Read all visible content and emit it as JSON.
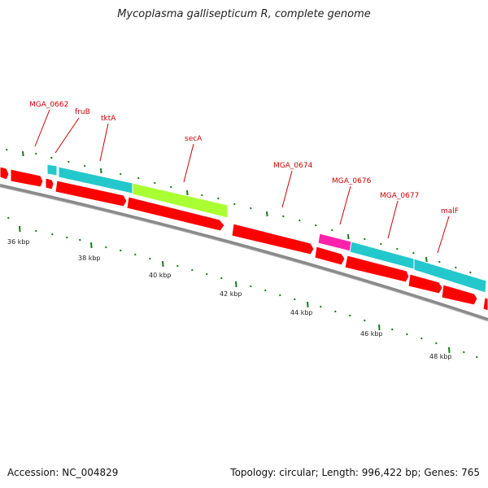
{
  "title": "Mycoplasma gallisepticum R, complete genome",
  "accession": "Accession: NC_004829",
  "summary": "Topology: circular; Length: 996,422 bp; Genes: 765",
  "colors": {
    "forward": "#ff0000",
    "reverse": "#ff0000",
    "cyan": "#22c8cc",
    "green": "#aaff33",
    "magenta": "#ff22aa",
    "backbone": "#8a8a8a",
    "tick": "#1a7a1a",
    "label": "#cc0000"
  },
  "gene_labels": [
    {
      "text": "MGA_0662"
    },
    {
      "text": "fruB"
    },
    {
      "text": "tktA"
    },
    {
      "text": "secA"
    },
    {
      "text": "MGA_0674"
    },
    {
      "text": "MGA_0676"
    },
    {
      "text": "MGA_0677"
    },
    {
      "text": "malF"
    }
  ],
  "kbp_labels": [
    "36 kbp",
    "38 kbp",
    "40 kbp",
    "42 kbp",
    "44 kbp",
    "46 kbp",
    "48 kbp"
  ]
}
